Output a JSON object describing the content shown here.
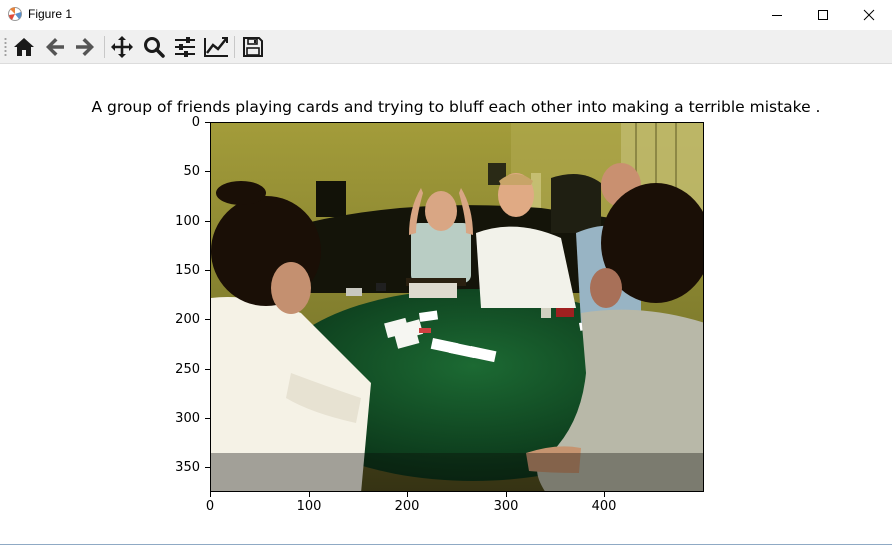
{
  "window": {
    "title": "Figure 1"
  },
  "toolbar": {
    "buttons": [
      {
        "name": "home",
        "icon": "home-icon"
      },
      {
        "name": "back",
        "icon": "arrow-left-icon"
      },
      {
        "name": "forward",
        "icon": "arrow-right-icon"
      },
      {
        "name": "pan",
        "icon": "move-icon"
      },
      {
        "name": "zoom",
        "icon": "magnifier-icon"
      },
      {
        "name": "configure-subplots",
        "icon": "sliders-icon"
      },
      {
        "name": "edit-axis",
        "icon": "line-chart-icon"
      },
      {
        "name": "save",
        "icon": "floppy-disk-icon"
      }
    ]
  },
  "figure": {
    "title": "A group of friends playing cards and trying to bluff each other into making a terrible mistake .",
    "y_ticks": [
      "0",
      "50",
      "100",
      "150",
      "200",
      "250",
      "300",
      "350"
    ],
    "x_ticks": [
      "0",
      "100",
      "200",
      "300",
      "400"
    ],
    "image_description_icon": "photo-poker-table"
  },
  "colors": {
    "toolbar_bg": "#f0f0f0",
    "table_felt": "#0f4a22",
    "wall": "#8a8a2a"
  }
}
